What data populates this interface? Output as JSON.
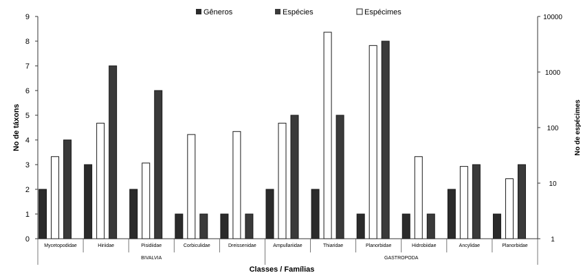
{
  "chart_data": {
    "type": "bar",
    "categories": [
      "Mycetopodidae",
      "Hiriidae",
      "Pisidiidae",
      "Corbiculidae",
      "Dreissenidae",
      "Ampullariidae",
      "Thiaridae",
      "Planorbidae",
      "Hidrobiidae",
      "Ancylidae",
      "Planorbidae"
    ],
    "groups": [
      {
        "label": "BIVALVIA",
        "from": 0,
        "to": 4
      },
      {
        "label": "GASTROPODA",
        "from": 5,
        "to": 10
      }
    ],
    "series": [
      {
        "name": "Gêneros",
        "axis": "left",
        "color": "#2b2b2b",
        "values": [
          2,
          3,
          2,
          1,
          1,
          2,
          2,
          1,
          1,
          2,
          1
        ]
      },
      {
        "name": "Espécies",
        "axis": "left",
        "color": "#3a3a3a",
        "values": [
          4,
          7,
          6,
          1,
          1,
          5,
          5,
          8,
          1,
          3,
          3
        ]
      },
      {
        "name": "Espécimes",
        "axis": "right",
        "color": "#ffffff",
        "values": [
          30,
          120,
          23,
          75,
          85,
          120,
          5200,
          3000,
          30,
          20,
          12
        ]
      }
    ],
    "legend_labels": [
      "Gêneros",
      "Espécies",
      "Espécimes"
    ],
    "xlabel": "Classes / Famílias",
    "ylabel": "No de táxons",
    "ylabel_right": "No de espécimes",
    "ylim": [
      0,
      9
    ],
    "yticks": [
      "0",
      "1",
      "2",
      "3",
      "4",
      "5",
      "6",
      "7",
      "8",
      "9"
    ],
    "y2lim": [
      1,
      10000
    ],
    "y2scale": "log",
    "y2ticks": [
      "1",
      "10",
      "100",
      "1000",
      "10000"
    ],
    "grid": false,
    "legend_position": "top-center"
  }
}
